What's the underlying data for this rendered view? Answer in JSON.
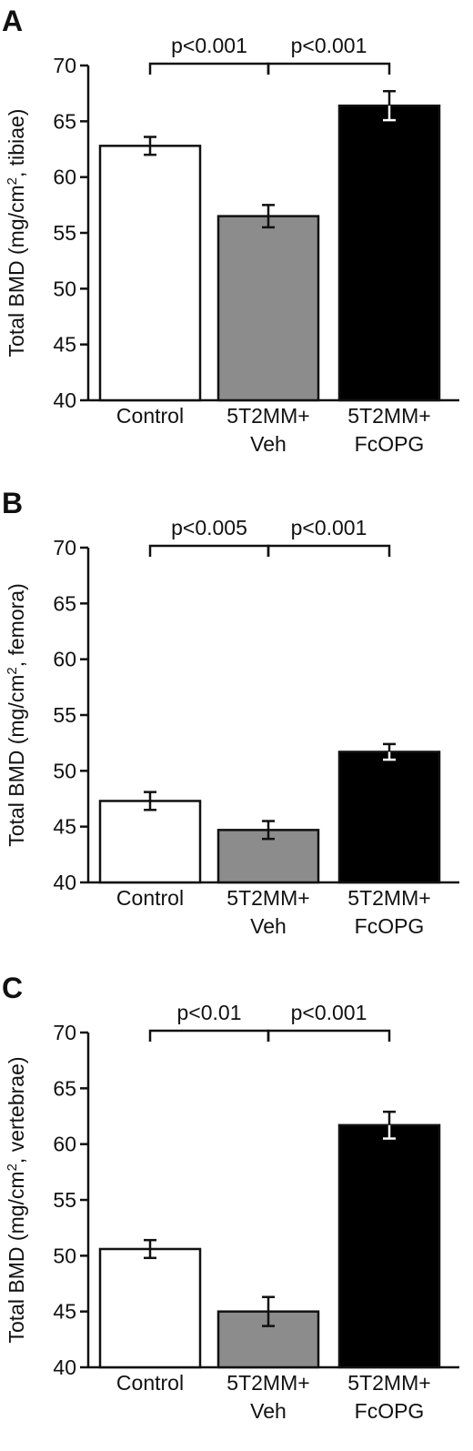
{
  "chart_data": [
    {
      "type": "bar",
      "panel": "A",
      "ylabel": "Total BMD (mg/cm², tibiae)",
      "ylim": [
        40,
        70
      ],
      "yticks": [
        40,
        45,
        50,
        55,
        60,
        65,
        70
      ],
      "categories": [
        [
          "Control"
        ],
        [
          "5T2MM+",
          "Veh"
        ],
        [
          "5T2MM+",
          "FcOPG"
        ]
      ],
      "values": [
        62.8,
        56.5,
        66.4
      ],
      "errors": [
        0.8,
        1.0,
        1.3
      ],
      "colors": [
        "#ffffff",
        "#8c8c8c",
        "#000000"
      ],
      "comparisons": [
        {
          "from": 0,
          "to": 1,
          "label": "p<0.001"
        },
        {
          "from": 1,
          "to": 2,
          "label": "p<0.001"
        }
      ]
    },
    {
      "type": "bar",
      "panel": "B",
      "ylabel": "Total BMD (mg/cm², femora)",
      "ylim": [
        40,
        70
      ],
      "yticks": [
        40,
        45,
        50,
        55,
        60,
        65,
        70
      ],
      "categories": [
        [
          "Control"
        ],
        [
          "5T2MM+",
          "Veh"
        ],
        [
          "5T2MM+",
          "FcOPG"
        ]
      ],
      "values": [
        47.3,
        44.7,
        51.7
      ],
      "errors": [
        0.8,
        0.8,
        0.7
      ],
      "colors": [
        "#ffffff",
        "#8c8c8c",
        "#000000"
      ],
      "comparisons": [
        {
          "from": 0,
          "to": 1,
          "label": "p<0.005"
        },
        {
          "from": 1,
          "to": 2,
          "label": "p<0.001"
        }
      ]
    },
    {
      "type": "bar",
      "panel": "C",
      "ylabel": "Total BMD (mg/cm², vertebrae)",
      "ylim": [
        40,
        70
      ],
      "yticks": [
        40,
        45,
        50,
        55,
        60,
        65,
        70
      ],
      "categories": [
        [
          "Control"
        ],
        [
          "5T2MM+",
          "Veh"
        ],
        [
          "5T2MM+",
          "FcOPG"
        ]
      ],
      "values": [
        50.6,
        45.0,
        61.7
      ],
      "errors": [
        0.8,
        1.3,
        1.2
      ],
      "colors": [
        "#ffffff",
        "#8c8c8c",
        "#000000"
      ],
      "comparisons": [
        {
          "from": 0,
          "to": 1,
          "label": "p<0.01"
        },
        {
          "from": 1,
          "to": 2,
          "label": "p<0.001"
        }
      ]
    }
  ]
}
